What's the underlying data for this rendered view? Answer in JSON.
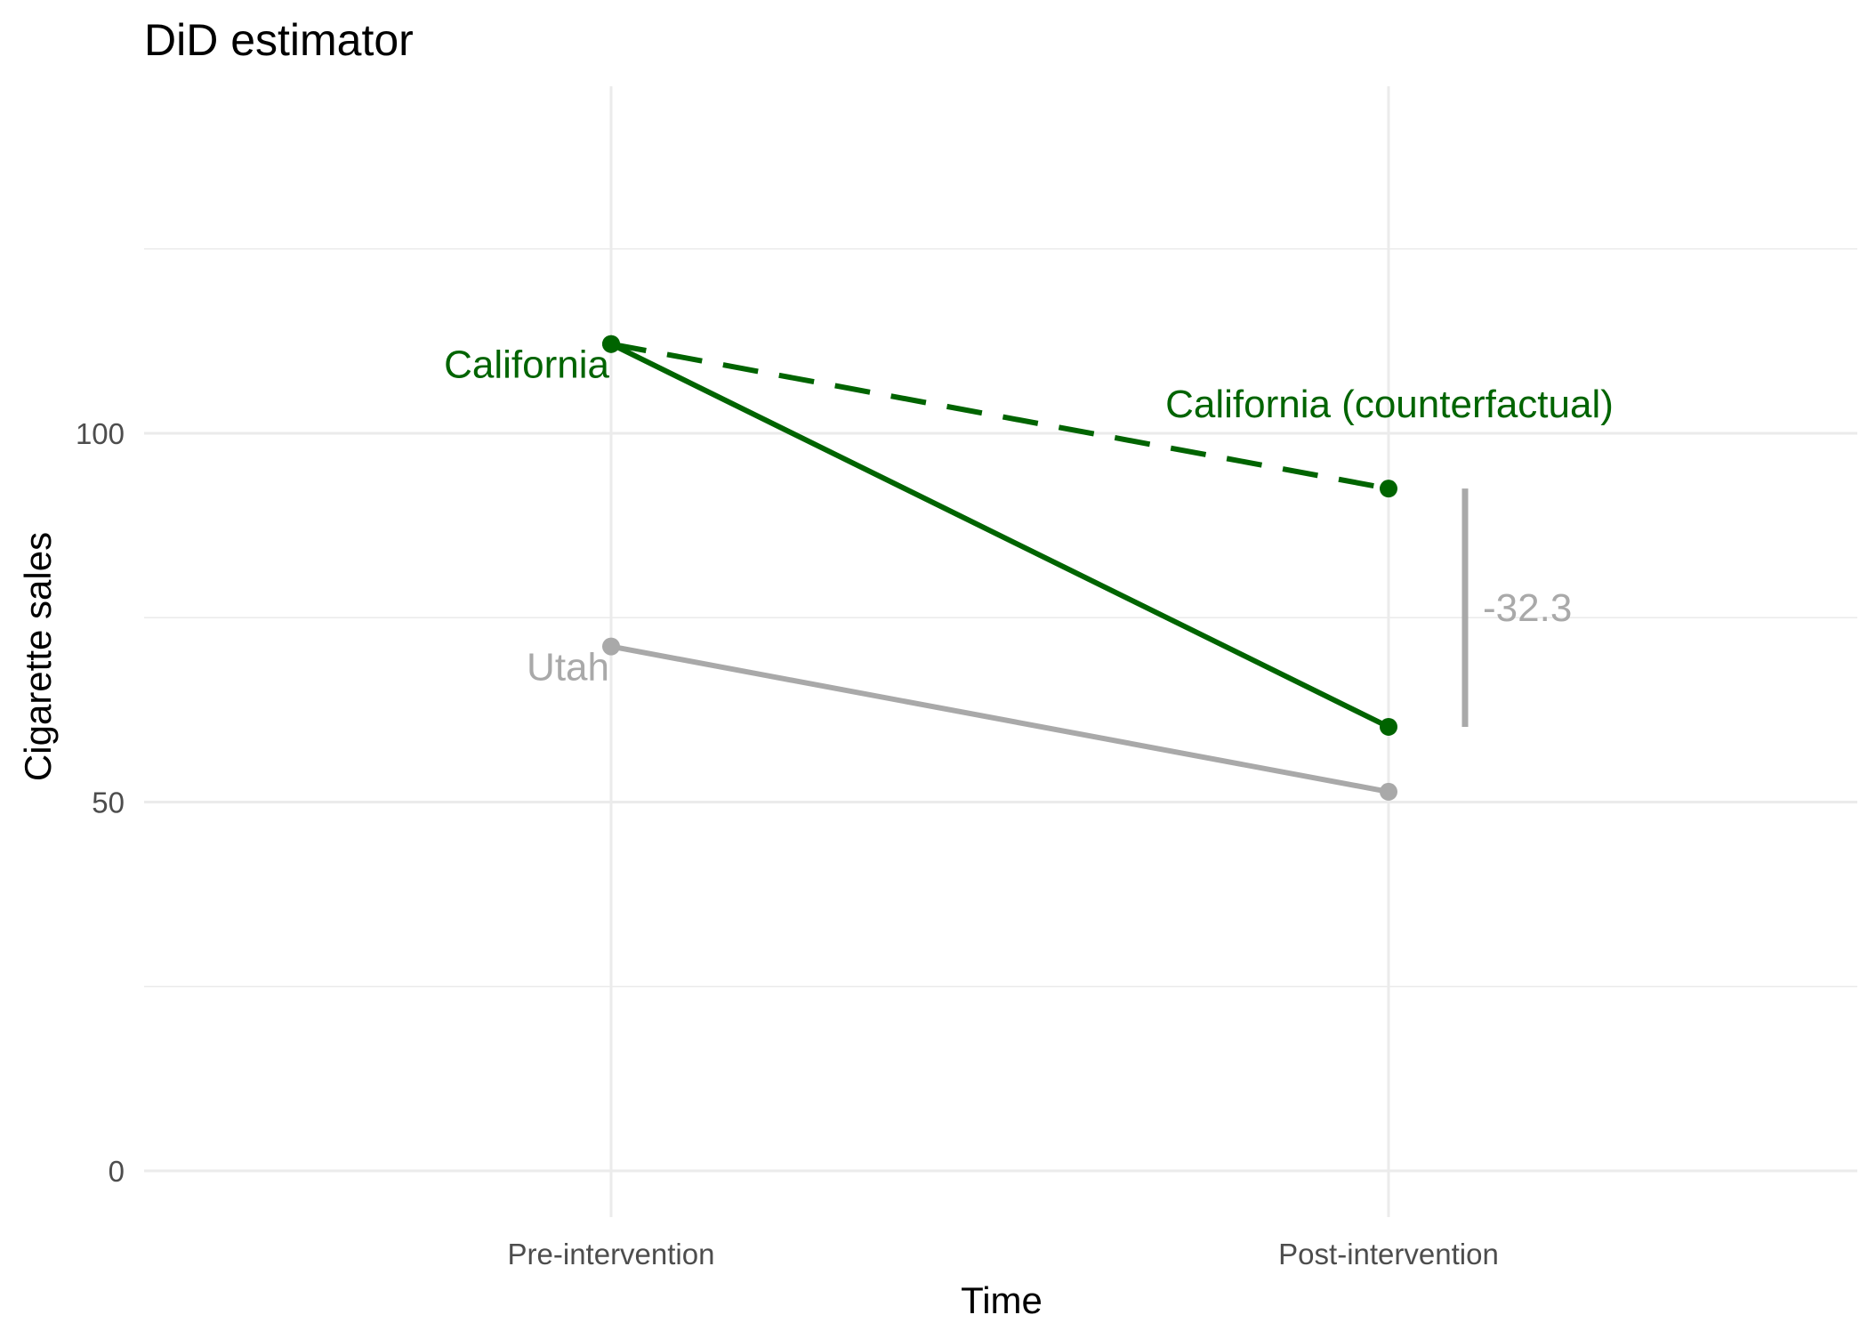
{
  "chart_data": {
    "type": "line",
    "title": "DiD estimator",
    "xlabel": "Time",
    "ylabel": "Cigarette sales",
    "categories": [
      "Pre-intervention",
      "Post-intervention"
    ],
    "ylim": [
      -6,
      146
    ],
    "yticks": [
      0,
      50,
      100
    ],
    "grid": true,
    "legend": "none",
    "series": [
      {
        "name": "California",
        "values": [
          112.1,
          60.2
        ],
        "color": "#006400",
        "dash": "solid",
        "label": "California",
        "label_at": 0
      },
      {
        "name": "California (counterfactual)",
        "values": [
          112.1,
          92.5
        ],
        "color": "#006400",
        "dash": "dashed",
        "label": "California (counterfactual)",
        "label_at": 1
      },
      {
        "name": "Utah",
        "values": [
          71.1,
          51.4
        ],
        "color": "#a9a9a9",
        "dash": "solid",
        "label": "Utah",
        "label_at": 0
      }
    ],
    "annotations": [
      {
        "text": "-32.3",
        "y_from": 60.2,
        "y_to": 92.5,
        "color": "#a9a9a9"
      }
    ]
  }
}
